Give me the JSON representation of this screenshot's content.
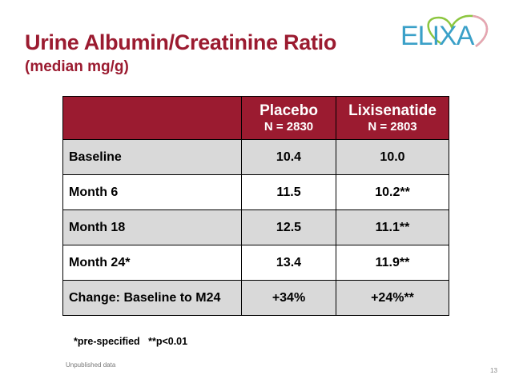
{
  "slide": {
    "title": "Urine Albumin/Creatinine Ratio",
    "subtitle": "(median mg/g)",
    "logo_text": "ELIXA",
    "footnote": "*pre-specified   **p<0.01",
    "source": "Unpublished data",
    "page_number": "13"
  },
  "table": {
    "headers": [
      {
        "name": "",
        "n": ""
      },
      {
        "name": "Placebo",
        "n": "N = 2830"
      },
      {
        "name": "Lixisenatide",
        "n": "N = 2803"
      }
    ],
    "rows": [
      {
        "label": "Baseline",
        "placebo": "10.4",
        "lixisenatide": "10.0"
      },
      {
        "label": "Month 6",
        "placebo": "11.5",
        "lixisenatide": "10.2**"
      },
      {
        "label": "Month 18",
        "placebo": "12.5",
        "lixisenatide": "11.1**"
      },
      {
        "label": "Month 24*",
        "placebo": "13.4",
        "lixisenatide": "11.9**"
      },
      {
        "label": "Change: Baseline to M24",
        "placebo": "+34%",
        "lixisenatide": "+24%**"
      }
    ]
  },
  "colors": {
    "brand_red": "#9b1b30",
    "row_shade": "#d9d9d9",
    "logo_blue": "#3aa0c8",
    "logo_green": "#8cc63f",
    "logo_pink": "#e7a3b4"
  }
}
